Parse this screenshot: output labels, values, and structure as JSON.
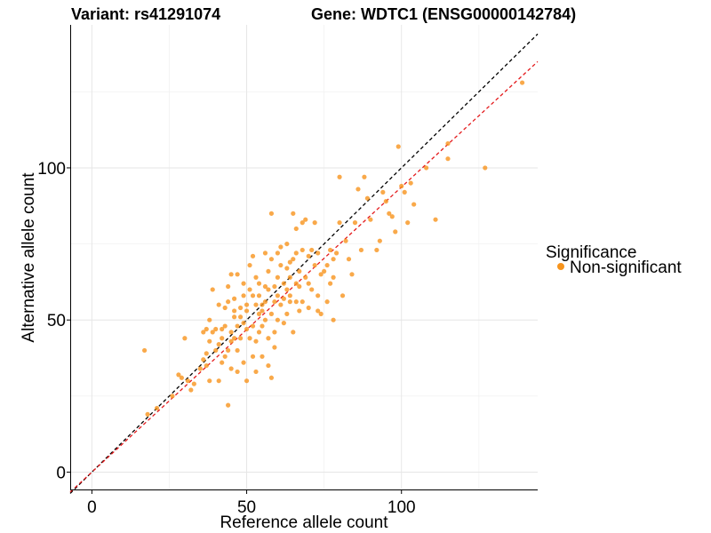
{
  "chart_data": {
    "type": "scatter",
    "title_left": "Variant: rs41291074",
    "title_right": "Gene: WDTC1 (ENSG00000142784)",
    "xlabel": "Reference allele count",
    "ylabel": "Alternative allele count",
    "xlim": [
      -7,
      144
    ],
    "ylim": [
      -6,
      147
    ],
    "x_ticks": [
      0,
      50,
      100
    ],
    "y_ticks": [
      0,
      50,
      100
    ],
    "grid": true,
    "legend": {
      "title": "Significance",
      "placement": "right",
      "entries": [
        {
          "label": "Non-significant",
          "color": "#F7941D"
        }
      ]
    },
    "reference_lines": [
      {
        "name": "identity",
        "slope": 1.0,
        "intercept": 0,
        "color": "#000000",
        "style": "dashed"
      },
      {
        "name": "fit",
        "slope": 0.937,
        "intercept": 0,
        "color": "#E41A1C",
        "style": "dashed"
      }
    ],
    "point_color": "#F7941D",
    "series": [
      {
        "name": "Non-significant",
        "points": [
          [
            17,
            40
          ],
          [
            18,
            19
          ],
          [
            21,
            21
          ],
          [
            26,
            25
          ],
          [
            28,
            32
          ],
          [
            29,
            31
          ],
          [
            30,
            44
          ],
          [
            31,
            30
          ],
          [
            32,
            27
          ],
          [
            33,
            29
          ],
          [
            35,
            34
          ],
          [
            36,
            37
          ],
          [
            36,
            46
          ],
          [
            37,
            35
          ],
          [
            37,
            39
          ],
          [
            37,
            47
          ],
          [
            38,
            30
          ],
          [
            38,
            50
          ],
          [
            38,
            43
          ],
          [
            39,
            60
          ],
          [
            39,
            46
          ],
          [
            40,
            47
          ],
          [
            40,
            40
          ],
          [
            41,
            42
          ],
          [
            41,
            30
          ],
          [
            41,
            55
          ],
          [
            42,
            36
          ],
          [
            42,
            44
          ],
          [
            42,
            47
          ],
          [
            43,
            54
          ],
          [
            43,
            38
          ],
          [
            43,
            48
          ],
          [
            44,
            40
          ],
          [
            44,
            22
          ],
          [
            44,
            56
          ],
          [
            44,
            61
          ],
          [
            45,
            43
          ],
          [
            45,
            34
          ],
          [
            45,
            46
          ],
          [
            45,
            65
          ],
          [
            46,
            44
          ],
          [
            46,
            57
          ],
          [
            46,
            53
          ],
          [
            46,
            51
          ],
          [
            47,
            48
          ],
          [
            47,
            65
          ],
          [
            47,
            40
          ],
          [
            47,
            33
          ],
          [
            48,
            51
          ],
          [
            48,
            54
          ],
          [
            48,
            44
          ],
          [
            49,
            58
          ],
          [
            49,
            62
          ],
          [
            49,
            36
          ],
          [
            49,
            49
          ],
          [
            50,
            55
          ],
          [
            50,
            47
          ],
          [
            50,
            53
          ],
          [
            50,
            30
          ],
          [
            51,
            68
          ],
          [
            51,
            44
          ],
          [
            51,
            60
          ],
          [
            52,
            58
          ],
          [
            52,
            48
          ],
          [
            52,
            38
          ],
          [
            52,
            71
          ],
          [
            53,
            55
          ],
          [
            53,
            43
          ],
          [
            53,
            64
          ],
          [
            53,
            33
          ],
          [
            54,
            58
          ],
          [
            54,
            52
          ],
          [
            54,
            46
          ],
          [
            54,
            62
          ],
          [
            55,
            48
          ],
          [
            55,
            55
          ],
          [
            55,
            53
          ],
          [
            55,
            38
          ],
          [
            56,
            56
          ],
          [
            56,
            61
          ],
          [
            56,
            50
          ],
          [
            56,
            72
          ],
          [
            57,
            60
          ],
          [
            57,
            66
          ],
          [
            57,
            44
          ],
          [
            57,
            35
          ],
          [
            58,
            52
          ],
          [
            58,
            85
          ],
          [
            58,
            31
          ],
          [
            58,
            70
          ],
          [
            59,
            56
          ],
          [
            59,
            61
          ],
          [
            59,
            46
          ],
          [
            59,
            41
          ],
          [
            60,
            72
          ],
          [
            60,
            64
          ],
          [
            60,
            50
          ],
          [
            60,
            58
          ],
          [
            61,
            55
          ],
          [
            61,
            68
          ],
          [
            61,
            74
          ],
          [
            62,
            62
          ],
          [
            62,
            49
          ],
          [
            62,
            57
          ],
          [
            63,
            60
          ],
          [
            63,
            75
          ],
          [
            63,
            67
          ],
          [
            63,
            52
          ],
          [
            64,
            64
          ],
          [
            64,
            69
          ],
          [
            64,
            58
          ],
          [
            64,
            56
          ],
          [
            65,
            85
          ],
          [
            65,
            70
          ],
          [
            65,
            46
          ],
          [
            66,
            72
          ],
          [
            66,
            62
          ],
          [
            66,
            56
          ],
          [
            66,
            80
          ],
          [
            67,
            66
          ],
          [
            67,
            61
          ],
          [
            67,
            53
          ],
          [
            68,
            73
          ],
          [
            68,
            82
          ],
          [
            68,
            56
          ],
          [
            69,
            64
          ],
          [
            69,
            83
          ],
          [
            70,
            54
          ],
          [
            70,
            62
          ],
          [
            70,
            71
          ],
          [
            71,
            73
          ],
          [
            71,
            60
          ],
          [
            72,
            68
          ],
          [
            72,
            82
          ],
          [
            73,
            72
          ],
          [
            73,
            58
          ],
          [
            73,
            53
          ],
          [
            74,
            65
          ],
          [
            74,
            52
          ],
          [
            75,
            66
          ],
          [
            76,
            56
          ],
          [
            76,
            68
          ],
          [
            77,
            62
          ],
          [
            77,
            73
          ],
          [
            78,
            70
          ],
          [
            78,
            64
          ],
          [
            78,
            50
          ],
          [
            79,
            72
          ],
          [
            80,
            82
          ],
          [
            80,
            97
          ],
          [
            81,
            58
          ],
          [
            82,
            76
          ],
          [
            83,
            70
          ],
          [
            84,
            65
          ],
          [
            85,
            82
          ],
          [
            86,
            93
          ],
          [
            87,
            73
          ],
          [
            88,
            97
          ],
          [
            89,
            90
          ],
          [
            90,
            83
          ],
          [
            92,
            73
          ],
          [
            93,
            76
          ],
          [
            94,
            92
          ],
          [
            95,
            89
          ],
          [
            96,
            85
          ],
          [
            97,
            84
          ],
          [
            98,
            79
          ],
          [
            99,
            107
          ],
          [
            100,
            94
          ],
          [
            101,
            92
          ],
          [
            102,
            82
          ],
          [
            103,
            95
          ],
          [
            104,
            88
          ],
          [
            108,
            100
          ],
          [
            111,
            83
          ],
          [
            115,
            108
          ],
          [
            115,
            103
          ],
          [
            127,
            100
          ],
          [
            139,
            128
          ]
        ]
      }
    ]
  }
}
